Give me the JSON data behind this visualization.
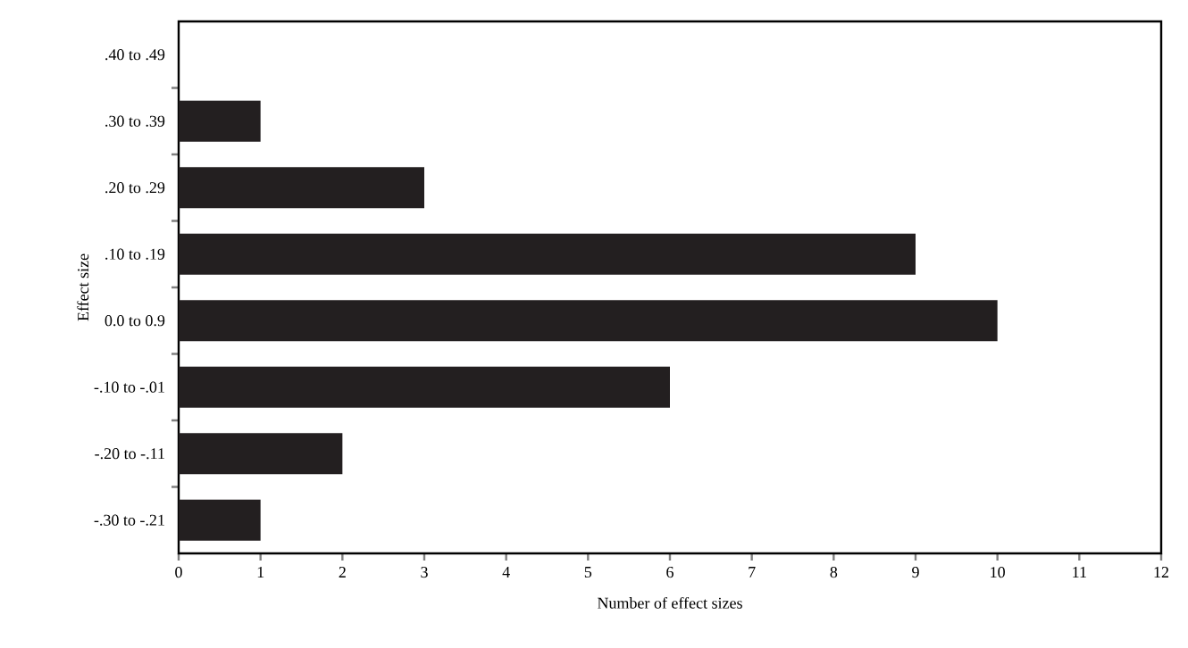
{
  "chart_data": {
    "type": "bar",
    "orientation": "horizontal",
    "xlabel": "Number of effect sizes",
    "ylabel": "Effect size",
    "categories": [
      ".40 to .49",
      ".30 to .39",
      ".20 to .29",
      ".10 to .19",
      "0.0 to 0.9",
      "-.10 to -.01",
      "-.20 to -.11",
      "-.30 to -.21"
    ],
    "values": [
      0,
      1,
      3,
      9,
      10,
      6,
      2,
      1
    ],
    "color": "#231f20",
    "xlim": [
      0,
      12
    ],
    "xticks": [
      0,
      1,
      2,
      3,
      4,
      5,
      6,
      7,
      8,
      9,
      10,
      11,
      12
    ],
    "grid": false
  }
}
